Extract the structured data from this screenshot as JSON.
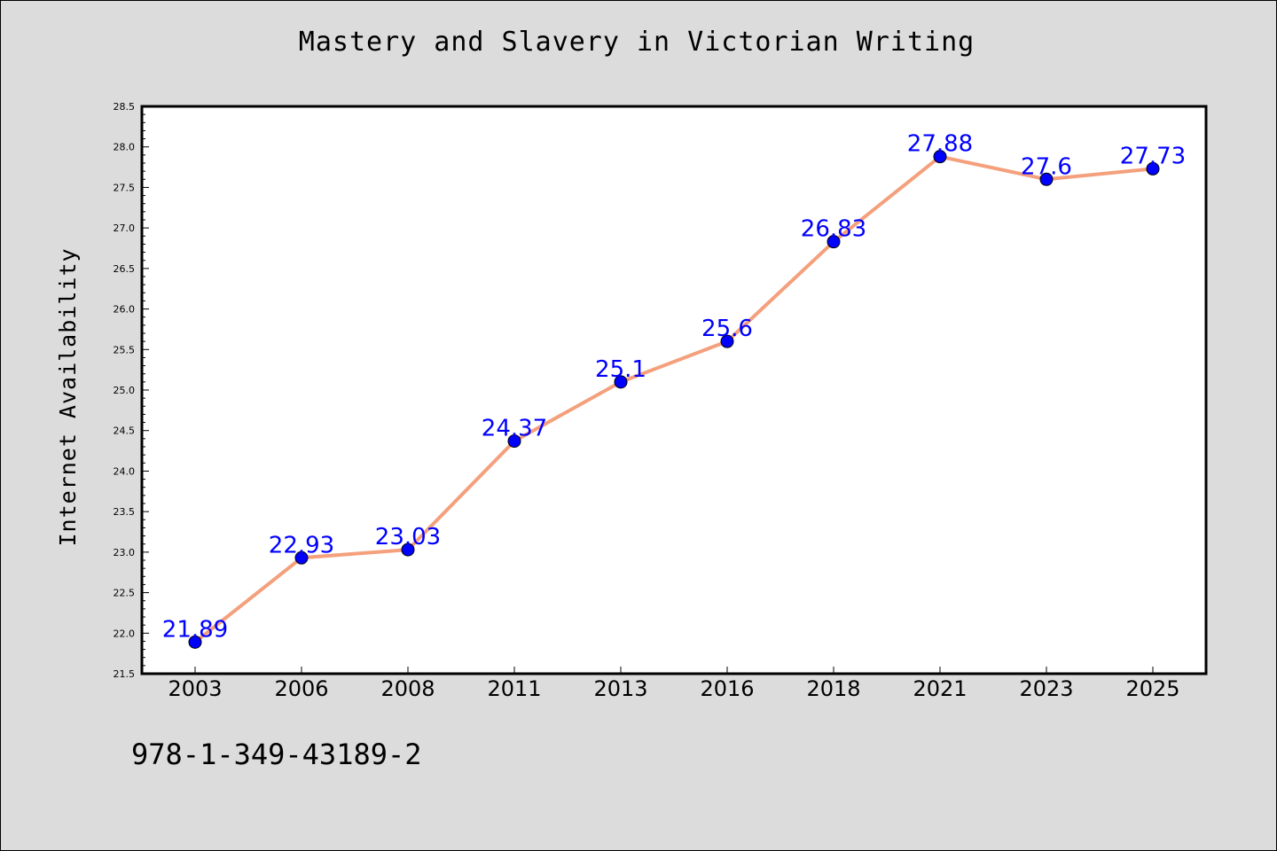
{
  "chart_data": {
    "type": "line",
    "title": "Mastery and Slavery in Victorian Writing",
    "xlabel": "",
    "ylabel": "Internet Availability",
    "categories": [
      "2003",
      "2006",
      "2008",
      "2011",
      "2013",
      "2016",
      "2018",
      "2021",
      "2023",
      "2025"
    ],
    "series": [
      {
        "values": [
          21.89,
          22.93,
          23.03,
          24.37,
          25.1,
          25.6,
          26.83,
          27.88,
          27.6,
          27.73
        ],
        "labels": [
          "21.89",
          "22.93",
          "23.03",
          "24.37",
          "25.1",
          "25.6",
          "26.83",
          "27.88",
          "27.6",
          "27.73"
        ],
        "line_color": "#f4a07c",
        "marker_color": "#0000ff"
      }
    ],
    "ylim": [
      21.5,
      28.5
    ],
    "yticks": [
      "21.5",
      "22.0",
      "22.5",
      "23.0",
      "23.5",
      "24.0",
      "24.5",
      "25.0",
      "25.5",
      "26.0",
      "26.5",
      "27.0",
      "27.5",
      "28.0",
      "28.5"
    ],
    "grid": false,
    "legend": "none",
    "footer": "978-1-349-43189-2"
  }
}
